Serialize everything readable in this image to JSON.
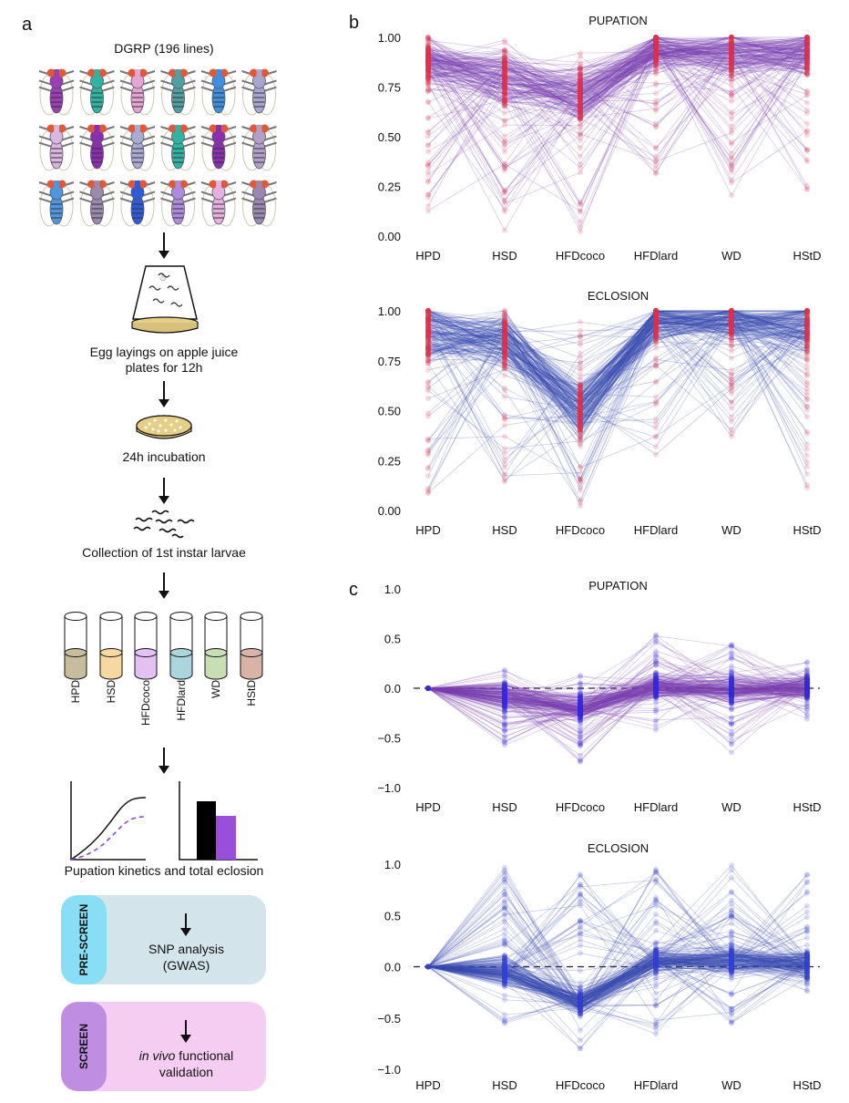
{
  "panel_a": {
    "letter": "a",
    "title": "DGRP (196 lines)",
    "fly_colors": [
      [
        "#9b3fb5",
        "#2fb3a3",
        "#e8a3d6",
        "#4fa0a3",
        "#3f8fe0",
        "#a6a6d0"
      ],
      [
        "#d8b6e0",
        "#8a2fb0",
        "#a8abd4",
        "#2fb3a3",
        "#8a2fb0",
        "#b0a0c8"
      ],
      [
        "#4f95e0",
        "#9a8ab0",
        "#2f5ad8",
        "#b08ae0",
        "#e6b0e0",
        "#9a88b0"
      ]
    ],
    "step1": "Egg layings on apple juice plates for 12h",
    "step1_lines": [
      "Egg layings on apple juice",
      "plates for 12h"
    ],
    "step2": "24h incubation",
    "step3": "Collection of 1st instar larvae",
    "tubes": [
      {
        "label": "HPD",
        "color": "#c7bc9e"
      },
      {
        "label": "HSD",
        "color": "#f6d9a0"
      },
      {
        "label": "HFDcoco",
        "color": "#e4c1f3"
      },
      {
        "label": "HFDlard",
        "color": "#acd6de"
      },
      {
        "label": "WD",
        "color": "#c8dfb6"
      },
      {
        "label": "HStD",
        "color": "#d9b3a6"
      }
    ],
    "step4": "Pupation kinetics and total eclosion",
    "prescreen": {
      "tab": "PRE-SCREEN",
      "line1": "SNP analysis",
      "line2": "(GWAS)",
      "tab_color": "#88def4",
      "box_color": "#d3e4ea"
    },
    "screen": {
      "tab": "SCREEN",
      "italic": "in vivo",
      "line1_rest": " functional",
      "line2": "validation",
      "tab_color": "#bf8ee3",
      "box_color": "#f5cdf3"
    }
  },
  "panel_b_letter": "b",
  "panel_c_letter": "c",
  "chart_data": [
    {
      "id": "b-pupation",
      "type": "line",
      "title": "PUPATION",
      "categories": [
        "HPD",
        "HSD",
        "HFDcoco",
        "HFDlard",
        "WD",
        "HStD"
      ],
      "ylim": [
        0,
        1
      ],
      "yticks": [
        "0.00",
        "0.25",
        "0.50",
        "0.75",
        "1.00"
      ],
      "ytick_values": [
        0,
        0.25,
        0.5,
        0.75,
        1.0
      ],
      "n_lines": 196,
      "line_color": "#7a3fb0",
      "point_color": "#e0304f",
      "medians": [
        0.88,
        0.8,
        0.7,
        0.94,
        0.92,
        0.93
      ],
      "ranges": [
        [
          0.12,
          1.0
        ],
        [
          0.02,
          1.0
        ],
        [
          0.02,
          0.97
        ],
        [
          0.31,
          1.0
        ],
        [
          0.17,
          1.0
        ],
        [
          0.18,
          1.0
        ]
      ]
    },
    {
      "id": "b-eclosion",
      "type": "line",
      "title": "ECLOSION",
      "categories": [
        "HPD",
        "HSD",
        "HFDcoco",
        "HFDlard",
        "WD",
        "HStD"
      ],
      "ylim": [
        0,
        1
      ],
      "yticks": [
        "0.00",
        "0.25",
        "0.50",
        "0.75",
        "1.00"
      ],
      "ytick_values": [
        0,
        0.25,
        0.5,
        0.75,
        1.0
      ],
      "n_lines": 196,
      "line_color": "#3a4cb0",
      "point_color": "#e0304f",
      "medians": [
        0.9,
        0.85,
        0.5,
        0.95,
        0.96,
        0.92
      ],
      "ranges": [
        [
          0.0,
          1.0
        ],
        [
          0.09,
          1.0
        ],
        [
          0.0,
          0.97
        ],
        [
          0.26,
          1.0
        ],
        [
          0.37,
          1.0
        ],
        [
          0.0,
          1.0
        ]
      ]
    },
    {
      "id": "c-pupation",
      "type": "line",
      "title": "PUPATION",
      "categories": [
        "HPD",
        "HSD",
        "HFDcoco",
        "HFDlard",
        "WD",
        "HStD"
      ],
      "ylim": [
        -1,
        1
      ],
      "yticks": [
        "−1.0",
        "−0.5",
        "0.0",
        "0.5",
        "1.0"
      ],
      "ytick_values": [
        -1,
        -0.5,
        0,
        0.5,
        1.0
      ],
      "reference_line": 0,
      "n_lines": 196,
      "line_color": "#7a3fb0",
      "point_color": "#3a2fe0",
      "medians": [
        0.0,
        -0.08,
        -0.2,
        0.02,
        -0.02,
        0.0
      ],
      "ranges": [
        [
          0,
          0
        ],
        [
          -0.58,
          0.2
        ],
        [
          -0.78,
          0.13
        ],
        [
          -0.42,
          0.54
        ],
        [
          -0.69,
          0.52
        ],
        [
          -0.31,
          0.3
        ]
      ]
    },
    {
      "id": "c-eclosion",
      "type": "line",
      "title": "ECLOSION",
      "categories": [
        "HPD",
        "HSD",
        "HFDcoco",
        "HFDlard",
        "WD",
        "HStD"
      ],
      "ylim": [
        -1,
        1
      ],
      "yticks": [
        "−1.0",
        "−0.5",
        "0.0",
        "0.5",
        "1.0"
      ],
      "ytick_values": [
        -1,
        -0.5,
        0,
        0.5,
        1.0
      ],
      "reference_line": 0,
      "n_lines": 196,
      "line_color": "#3a4cb0",
      "point_color": "#3a45d0",
      "medians": [
        0.0,
        -0.05,
        -0.35,
        0.05,
        0.06,
        0.02
      ],
      "ranges": [
        [
          0,
          0
        ],
        [
          -0.62,
          0.98
        ],
        [
          -0.82,
          0.91
        ],
        [
          -0.67,
          0.99
        ],
        [
          -0.57,
          0.99
        ],
        [
          -0.26,
          0.98
        ]
      ]
    }
  ]
}
